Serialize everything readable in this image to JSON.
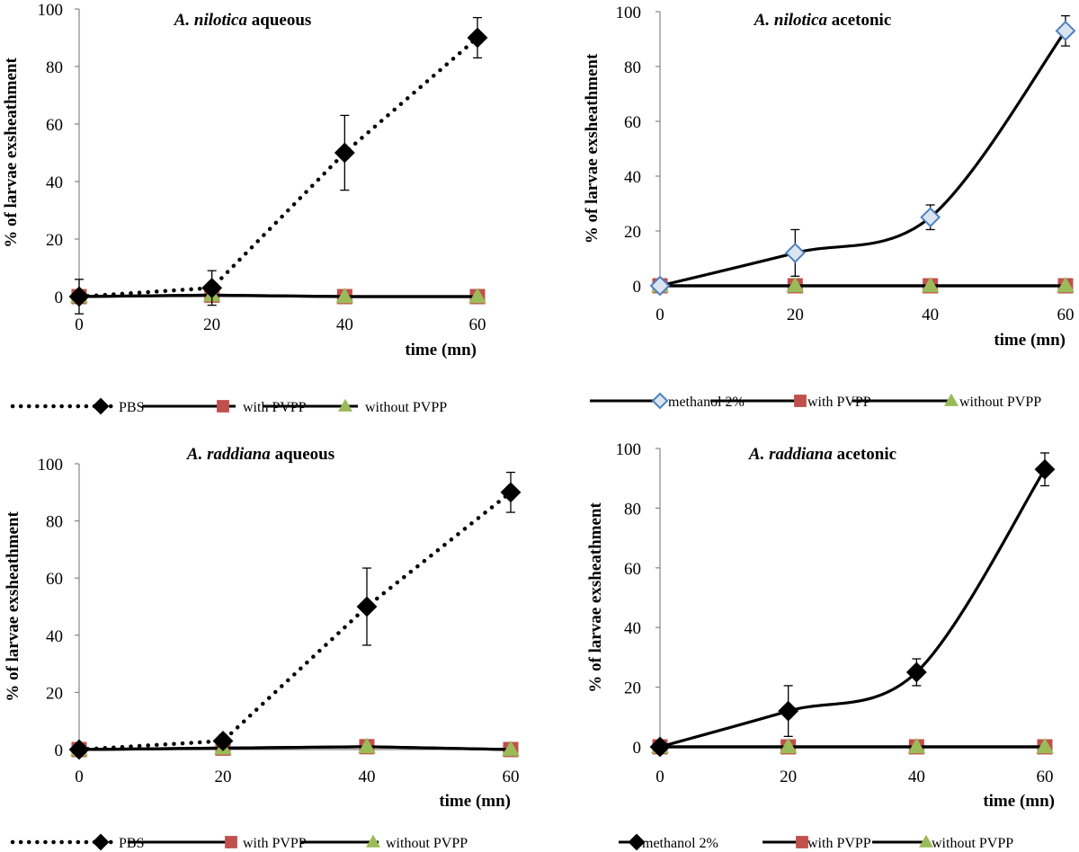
{
  "chart_data": [
    {
      "type": "line",
      "title_species": "A. nilotica",
      "title_extract": "aqueous",
      "xlabel": "time (mn)",
      "ylabel": "% of larvae exsheathment",
      "x": [
        0,
        20,
        40,
        60
      ],
      "xticks": [
        "0",
        "20",
        "40",
        "60"
      ],
      "yticks": [
        "0",
        "20",
        "40",
        "60",
        "80",
        "100"
      ],
      "ylim": [
        0,
        100
      ],
      "series": [
        {
          "name": "PBS",
          "values": [
            0,
            3,
            50,
            90
          ],
          "errors": [
            6,
            6,
            13,
            7
          ],
          "marker": "diamond",
          "line": "dotted",
          "smooth": false,
          "marker_fill": "#000000",
          "marker_stroke": "#000000"
        },
        {
          "name": "with PVPP",
          "values": [
            0,
            0.5,
            0,
            0
          ],
          "marker": "square",
          "line": "solid",
          "smooth": false,
          "marker_fill": "#c0504d",
          "marker_stroke": "#c0504d"
        },
        {
          "name": "without PVPP",
          "values": [
            0,
            0.5,
            0,
            0
          ],
          "marker": "triangle",
          "line": "solid",
          "smooth": false,
          "marker_fill": "#9bbb59",
          "marker_stroke": "#9bbb59"
        }
      ]
    },
    {
      "type": "line",
      "title_species": "A. nilotica",
      "title_extract": "acetonic",
      "xlabel": "time (mn)",
      "ylabel": "% of larvae exsheathment",
      "x": [
        0,
        20,
        40,
        60
      ],
      "xticks": [
        "0",
        "20",
        "40",
        "60"
      ],
      "yticks": [
        "0",
        "20",
        "40",
        "60",
        "80",
        "100"
      ],
      "ylim": [
        0,
        100
      ],
      "series": [
        {
          "name": "methanol 2%",
          "values": [
            0,
            12,
            25,
            93
          ],
          "errors": [
            0,
            8.5,
            4.5,
            5.5
          ],
          "marker": "diamond",
          "line": "solid",
          "smooth": true,
          "marker_fill": "#dbe5f1",
          "marker_stroke": "#4f81bd"
        },
        {
          "name": "with PVPP",
          "values": [
            0,
            0,
            0,
            0
          ],
          "marker": "square",
          "line": "solid",
          "smooth": false,
          "marker_fill": "#c0504d",
          "marker_stroke": "#c0504d"
        },
        {
          "name": "without PVPP",
          "values": [
            0,
            0,
            0,
            0
          ],
          "marker": "triangle",
          "line": "solid",
          "smooth": false,
          "marker_fill": "#9bbb59",
          "marker_stroke": "#9bbb59"
        }
      ]
    },
    {
      "type": "line",
      "title_species": "A. raddiana",
      "title_extract": "aqueous",
      "xlabel": "time (mn)",
      "ylabel": "% of larvae exsheathment",
      "x": [
        0,
        20,
        40,
        60
      ],
      "xticks": [
        "0",
        "20",
        "40",
        "60"
      ],
      "yticks": [
        "0",
        "20",
        "40",
        "60",
        "80",
        "100"
      ],
      "ylim": [
        0,
        100
      ],
      "series": [
        {
          "name": "PBS",
          "values": [
            0,
            3,
            50,
            90
          ],
          "errors": [
            0,
            2,
            13.5,
            7
          ],
          "marker": "diamond",
          "line": "dotted",
          "smooth": false,
          "marker_fill": "#000000",
          "marker_stroke": "#000000"
        },
        {
          "name": "with PVPP",
          "values": [
            0,
            0.5,
            1,
            0
          ],
          "marker": "square",
          "line": "solid",
          "smooth": false,
          "marker_fill": "#c0504d",
          "marker_stroke": "#c0504d"
        },
        {
          "name": "without PVPP",
          "values": [
            0,
            0.5,
            1,
            0
          ],
          "marker": "triangle",
          "line": "solid",
          "smooth": false,
          "marker_fill": "#9bbb59",
          "marker_stroke": "#9bbb59"
        }
      ]
    },
    {
      "type": "line",
      "title_species": "A. raddiana",
      "title_extract": "acetonic",
      "xlabel": "time (mn)",
      "ylabel": "% of larvae  exsheathment",
      "x": [
        0,
        20,
        40,
        60
      ],
      "xticks": [
        "0",
        "20",
        "40",
        "60"
      ],
      "yticks": [
        "0",
        "20",
        "40",
        "60",
        "80",
        "100"
      ],
      "ylim": [
        0,
        100
      ],
      "series": [
        {
          "name": "methanol 2%",
          "values": [
            0,
            12,
            25,
            93
          ],
          "errors": [
            0,
            8.5,
            4.5,
            5.5
          ],
          "marker": "diamond",
          "line": "solid",
          "smooth": true,
          "marker_fill": "#000000",
          "marker_stroke": "#000000"
        },
        {
          "name": "with PVPP",
          "values": [
            0,
            0,
            0,
            0
          ],
          "marker": "square",
          "line": "solid",
          "smooth": false,
          "marker_fill": "#c0504d",
          "marker_stroke": "#c0504d"
        },
        {
          "name": "without PVPP",
          "values": [
            0,
            0,
            0,
            0
          ],
          "marker": "triangle",
          "line": "solid",
          "smooth": false,
          "marker_fill": "#9bbb59",
          "marker_stroke": "#9bbb59"
        }
      ]
    }
  ]
}
